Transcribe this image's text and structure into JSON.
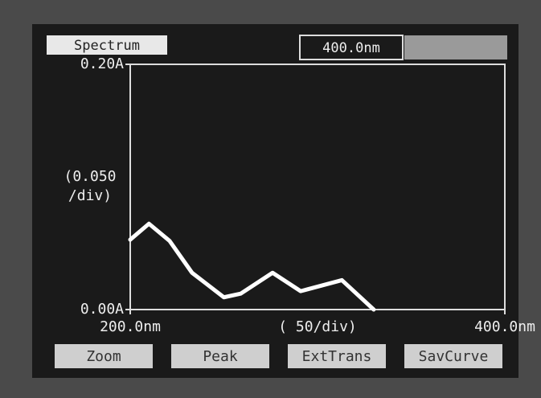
{
  "header": {
    "title": "Spectrum",
    "wavelength": "400.0nm"
  },
  "chart_data": {
    "type": "line",
    "x": [
      200,
      210,
      221,
      233,
      250,
      259,
      276,
      291,
      313,
      330
    ],
    "values": [
      0.057,
      0.07,
      0.056,
      0.03,
      0.01,
      0.013,
      0.03,
      0.015,
      0.024,
      0
    ],
    "color": "#ffffff",
    "xlim": [
      200,
      400
    ],
    "xticks": [
      {
        "value": 200,
        "label": "200.0nm"
      },
      {
        "value": 400,
        "label": "400.0nm"
      }
    ],
    "ylim": [
      0,
      0.2
    ],
    "yticks": [
      {
        "value": 0,
        "label": "0.00A"
      },
      {
        "value": 0.2,
        "label": "0.20A"
      }
    ],
    "y_scale_note": [
      "(0.050",
      "/div)"
    ],
    "x_scale_note": "(  50/div)"
  },
  "buttons": [
    "Zoom",
    "Peak",
    "ExtTrans",
    "SavCurve"
  ]
}
